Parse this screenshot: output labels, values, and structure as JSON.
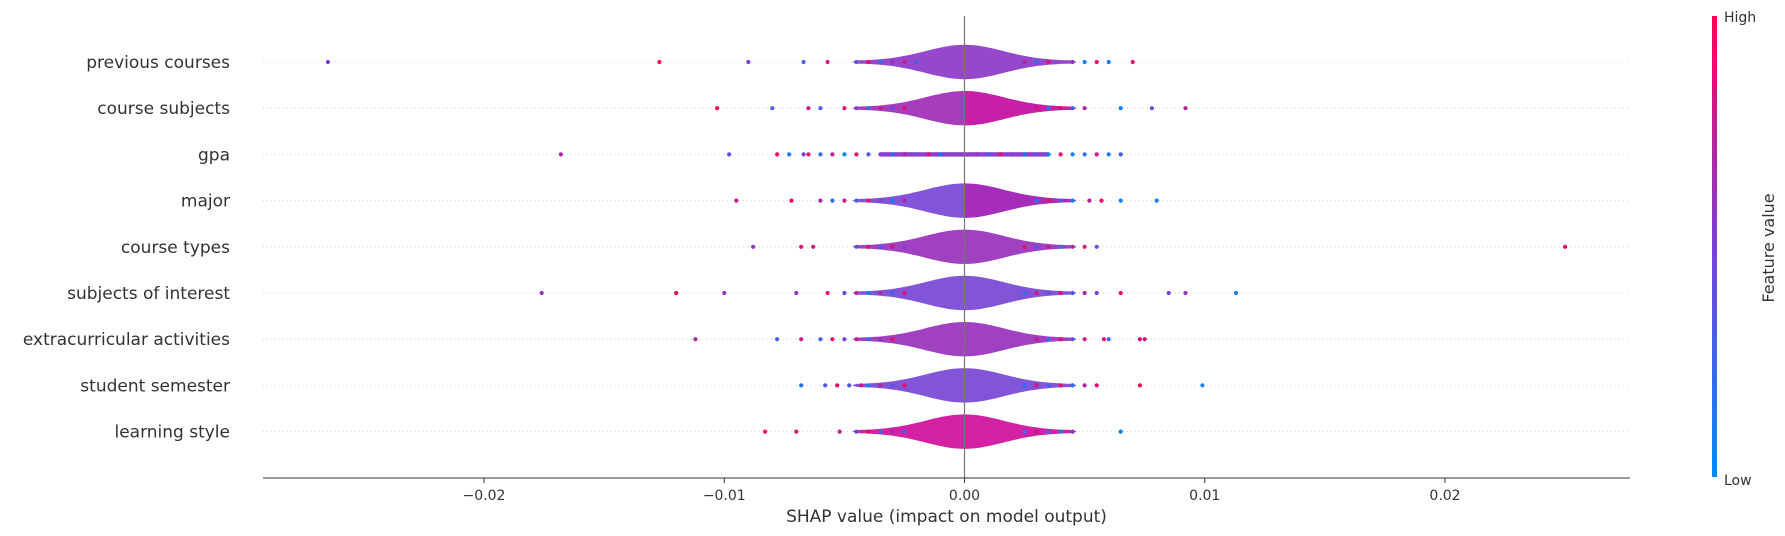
{
  "chart_data": {
    "type": "violin-summary",
    "xlabel": "SHAP value (impact on model output)",
    "xlim": [
      -0.0292,
      0.0277
    ],
    "x_ticks": [
      {
        "value": -0.02,
        "label": "−0.02"
      },
      {
        "value": -0.01,
        "label": "−0.01"
      },
      {
        "value": 0.0,
        "label": "0.00"
      },
      {
        "value": 0.01,
        "label": "0.01"
      },
      {
        "value": 0.02,
        "label": "0.02"
      }
    ],
    "colorbar": {
      "label": "Feature value",
      "high_label": "High",
      "low_label": "Low",
      "high_color": "#ff0052",
      "low_color": "#008bfa"
    },
    "features": [
      {
        "name": "previous courses",
        "spread": 0.003,
        "violin": "#8f3ec8",
        "points": [
          [
            -0.0265,
            0.5
          ],
          [
            -0.0127,
            1.0
          ],
          [
            -0.009,
            0.5
          ],
          [
            -0.0067,
            0.3
          ],
          [
            -0.0057,
            0.8
          ],
          [
            -0.0045,
            0.4
          ],
          [
            -0.004,
            0.9
          ],
          [
            -0.0035,
            0.2
          ],
          [
            -0.003,
            0.6
          ],
          [
            -0.0025,
            0.8
          ],
          [
            -0.002,
            0.3
          ],
          [
            0.0025,
            0.7
          ],
          [
            0.003,
            0.2
          ],
          [
            0.0035,
            0.9
          ],
          [
            0.0045,
            0.6
          ],
          [
            0.005,
            0.1
          ],
          [
            0.0055,
            0.9
          ],
          [
            0.006,
            0.1
          ],
          [
            0.007,
            0.9
          ]
        ]
      },
      {
        "name": "course subjects",
        "spread": 0.003,
        "violin": "#a233b8",
        "split": true,
        "points": [
          [
            -0.0103,
            1.0
          ],
          [
            -0.008,
            0.3
          ],
          [
            -0.0065,
            0.8
          ],
          [
            -0.006,
            0.3
          ],
          [
            -0.005,
            0.9
          ],
          [
            -0.0045,
            0.5
          ],
          [
            -0.004,
            0.2
          ],
          [
            -0.0035,
            0.8
          ],
          [
            -0.003,
            0.4
          ],
          [
            -0.0025,
            0.9
          ],
          [
            0.003,
            0.8
          ],
          [
            0.0035,
            0.2
          ],
          [
            0.004,
            0.9
          ],
          [
            0.0045,
            0.3
          ],
          [
            0.005,
            0.7
          ],
          [
            0.0065,
            0.1
          ],
          [
            0.0078,
            0.4
          ],
          [
            0.0092,
            0.7
          ]
        ]
      },
      {
        "name": "gpa",
        "spread": 0.0,
        "violin": "#8f3ec8",
        "points": [
          [
            -0.0168,
            0.7
          ],
          [
            -0.0098,
            0.4
          ],
          [
            -0.0078,
            1.0
          ],
          [
            -0.0073,
            0.1
          ],
          [
            -0.0067,
            0.5
          ],
          [
            -0.0065,
            0.9
          ],
          [
            -0.006,
            0.2
          ],
          [
            -0.0055,
            0.8
          ],
          [
            -0.005,
            0.0
          ],
          [
            -0.0045,
            0.9
          ],
          [
            -0.004,
            0.3
          ],
          [
            -0.0035,
            0.5
          ],
          [
            -0.003,
            0.2
          ],
          [
            -0.0025,
            0.7
          ],
          [
            -0.002,
            0.4
          ],
          [
            -0.0015,
            0.9
          ],
          [
            -0.001,
            0.1
          ],
          [
            0.0005,
            0.6
          ],
          [
            0.001,
            0.3
          ],
          [
            0.0015,
            0.9
          ],
          [
            0.002,
            0.5
          ],
          [
            0.0025,
            0.1
          ],
          [
            0.003,
            0.4
          ],
          [
            0.0035,
            0.0
          ],
          [
            0.004,
            0.9
          ],
          [
            0.0045,
            0.1
          ],
          [
            0.005,
            0.2
          ],
          [
            0.0055,
            0.8
          ],
          [
            0.006,
            0.1
          ],
          [
            0.0065,
            0.3
          ]
        ]
      },
      {
        "name": "major",
        "spread": 0.003,
        "violin": "#7b4bd6",
        "split": true,
        "points": [
          [
            -0.0095,
            0.8
          ],
          [
            -0.0072,
            1.0
          ],
          [
            -0.006,
            0.7
          ],
          [
            -0.0055,
            0.2
          ],
          [
            -0.005,
            0.8
          ],
          [
            -0.0045,
            0.3
          ],
          [
            -0.004,
            0.9
          ],
          [
            -0.0035,
            0.5
          ],
          [
            -0.003,
            0.1
          ],
          [
            -0.0025,
            0.7
          ],
          [
            0.003,
            0.2
          ],
          [
            0.0035,
            0.9
          ],
          [
            0.004,
            0.3
          ],
          [
            0.0045,
            0.1
          ],
          [
            0.0052,
            0.7
          ],
          [
            0.0057,
            0.9
          ],
          [
            0.0065,
            0.1
          ],
          [
            0.008,
            0.1
          ]
        ]
      },
      {
        "name": "course types",
        "spread": 0.003,
        "violin": "#9b37bf",
        "points": [
          [
            -0.0088,
            0.6
          ],
          [
            -0.0068,
            0.9
          ],
          [
            -0.0063,
            0.8
          ],
          [
            -0.0045,
            0.4
          ],
          [
            -0.004,
            0.9
          ],
          [
            -0.0035,
            0.3
          ],
          [
            -0.003,
            0.8
          ],
          [
            -0.0025,
            0.5
          ],
          [
            0.0025,
            0.9
          ],
          [
            0.003,
            0.3
          ],
          [
            0.0035,
            0.8
          ],
          [
            0.004,
            0.2
          ],
          [
            0.0045,
            0.7
          ],
          [
            0.005,
            0.9
          ],
          [
            0.0055,
            0.4
          ],
          [
            0.025,
            1.0
          ]
        ]
      },
      {
        "name": "subjects of interest",
        "spread": 0.003,
        "violin": "#7b4bd6",
        "points": [
          [
            -0.0176,
            0.6
          ],
          [
            -0.012,
            1.0
          ],
          [
            -0.01,
            0.6
          ],
          [
            -0.007,
            0.6
          ],
          [
            -0.0057,
            0.9
          ],
          [
            -0.005,
            0.4
          ],
          [
            -0.0045,
            0.8
          ],
          [
            -0.004,
            0.1
          ],
          [
            -0.0035,
            0.7
          ],
          [
            -0.003,
            0.3
          ],
          [
            -0.0025,
            0.9
          ],
          [
            0.0025,
            0.2
          ],
          [
            0.003,
            0.8
          ],
          [
            0.0035,
            0.4
          ],
          [
            0.004,
            0.9
          ],
          [
            0.0045,
            0.3
          ],
          [
            0.005,
            0.7
          ],
          [
            0.0055,
            0.5
          ],
          [
            0.0065,
            0.9
          ],
          [
            0.0085,
            0.5
          ],
          [
            0.0092,
            0.6
          ],
          [
            0.0113,
            0.1
          ]
        ]
      },
      {
        "name": "extracurricular activities",
        "spread": 0.003,
        "violin": "#9b37bf",
        "points": [
          [
            -0.0112,
            0.7
          ],
          [
            -0.0078,
            0.3
          ],
          [
            -0.0068,
            0.8
          ],
          [
            -0.006,
            0.3
          ],
          [
            -0.0055,
            0.9
          ],
          [
            -0.005,
            0.5
          ],
          [
            -0.0045,
            0.8
          ],
          [
            -0.004,
            0.2
          ],
          [
            -0.0035,
            0.6
          ],
          [
            -0.003,
            0.9
          ],
          [
            0.003,
            0.8
          ],
          [
            0.0035,
            0.2
          ],
          [
            0.004,
            0.9
          ],
          [
            0.0045,
            0.4
          ],
          [
            0.005,
            0.8
          ],
          [
            0.0058,
            0.9
          ],
          [
            0.006,
            0.3
          ],
          [
            0.0073,
            0.9
          ],
          [
            0.0075,
            0.8
          ]
        ]
      },
      {
        "name": "student semester",
        "spread": 0.003,
        "violin": "#7b4bd6",
        "points": [
          [
            -0.0068,
            0.2
          ],
          [
            -0.0058,
            0.3
          ],
          [
            -0.0053,
            0.9
          ],
          [
            -0.0048,
            0.3
          ],
          [
            -0.0043,
            0.8
          ],
          [
            -0.004,
            0.1
          ],
          [
            -0.0035,
            0.7
          ],
          [
            -0.003,
            0.4
          ],
          [
            -0.0025,
            0.9
          ],
          [
            0.0025,
            0.2
          ],
          [
            0.003,
            0.8
          ],
          [
            0.0035,
            0.3
          ],
          [
            0.004,
            0.9
          ],
          [
            0.0045,
            0.2
          ],
          [
            0.005,
            0.7
          ],
          [
            0.0055,
            0.9
          ],
          [
            0.0073,
            1.0
          ],
          [
            0.0099,
            0.1
          ]
        ]
      },
      {
        "name": "learning style",
        "spread": 0.003,
        "violin": "#d1159e",
        "points": [
          [
            -0.0083,
            1.0
          ],
          [
            -0.007,
            0.9
          ],
          [
            -0.0052,
            0.8
          ],
          [
            -0.0045,
            0.4
          ],
          [
            -0.004,
            0.9
          ],
          [
            -0.0035,
            0.2
          ],
          [
            -0.003,
            0.7
          ],
          [
            -0.0025,
            0.3
          ],
          [
            0.0025,
            0.2
          ],
          [
            0.003,
            0.8
          ],
          [
            0.0035,
            0.3
          ],
          [
            0.004,
            0.1
          ],
          [
            0.0045,
            0.6
          ],
          [
            0.0065,
            0.1
          ]
        ]
      }
    ]
  }
}
